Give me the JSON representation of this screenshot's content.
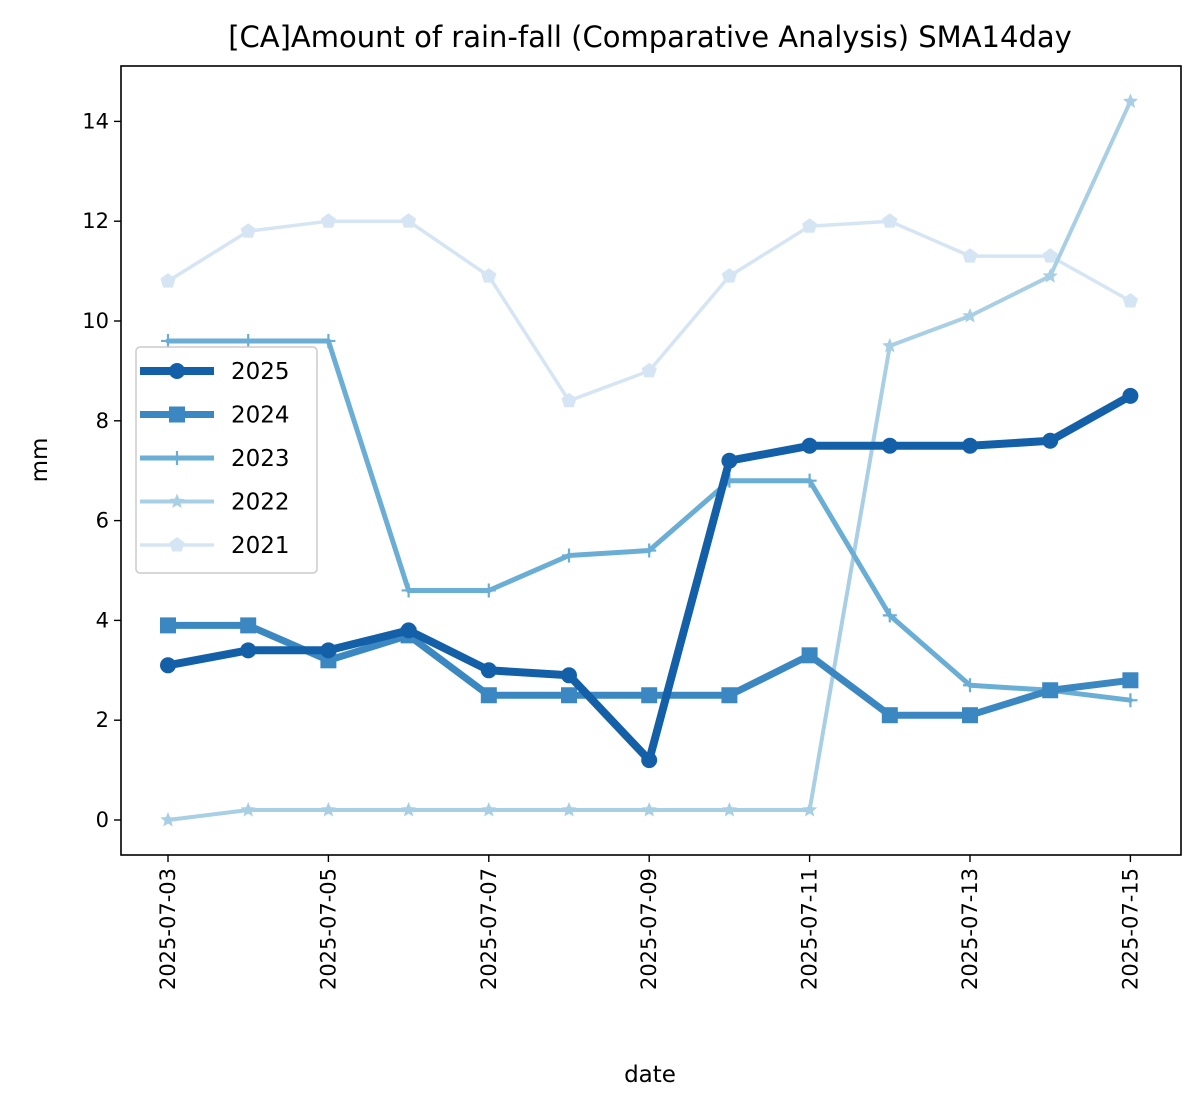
{
  "chart_data": {
    "type": "line",
    "title": "[CA]Amount of rain-fall (Comparative Analysis) SMA14day",
    "xlabel": "date",
    "ylabel": "mm",
    "x": [
      "2025-07-03",
      "2025-07-04",
      "2025-07-05",
      "2025-07-06",
      "2025-07-07",
      "2025-07-08",
      "2025-07-09",
      "2025-07-10",
      "2025-07-11",
      "2025-07-12",
      "2025-07-13",
      "2025-07-14",
      "2025-07-15"
    ],
    "x_ticks": [
      "2025-07-03",
      "2025-07-05",
      "2025-07-07",
      "2025-07-09",
      "2025-07-11",
      "2025-07-13",
      "2025-07-15"
    ],
    "y_ticks": [
      0,
      2,
      4,
      6,
      8,
      10,
      12,
      14
    ],
    "ylim": [
      -0.7,
      15.1
    ],
    "grid": false,
    "legend_position": "center-left",
    "series": [
      {
        "name": "2025",
        "color": "#1460a8",
        "marker": "circle",
        "values": [
          3.1,
          3.4,
          3.4,
          3.8,
          3.0,
          2.9,
          1.2,
          7.2,
          7.5,
          7.5,
          7.5,
          7.6,
          8.5
        ]
      },
      {
        "name": "2024",
        "color": "#3a87c2",
        "marker": "square",
        "values": [
          3.9,
          3.9,
          3.2,
          3.7,
          2.5,
          2.5,
          2.5,
          2.5,
          3.3,
          2.1,
          2.1,
          2.6,
          2.8
        ]
      },
      {
        "name": "2023",
        "color": "#6aaed6",
        "marker": "plus",
        "values": [
          9.6,
          9.6,
          9.6,
          4.6,
          4.6,
          5.3,
          5.4,
          6.8,
          6.8,
          4.1,
          2.7,
          2.6,
          2.4
        ]
      },
      {
        "name": "2022",
        "color": "#a9cfe5",
        "marker": "star",
        "values": [
          0.0,
          0.2,
          0.2,
          0.2,
          0.2,
          0.2,
          0.2,
          0.2,
          0.2,
          9.5,
          10.1,
          10.9,
          14.4
        ]
      },
      {
        "name": "2021",
        "color": "#d5e5f4",
        "marker": "pentagon",
        "values": [
          10.8,
          11.8,
          12.0,
          12.0,
          10.9,
          8.4,
          9.0,
          10.9,
          11.9,
          12.0,
          11.3,
          11.3,
          10.4
        ]
      }
    ]
  }
}
